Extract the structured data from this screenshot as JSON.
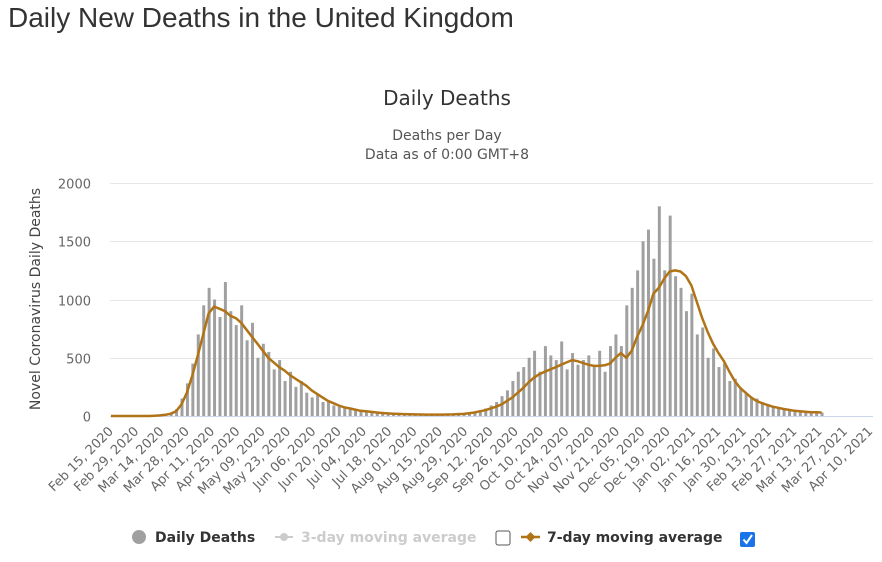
{
  "page": {
    "title": "Daily New Deaths in the United Kingdom"
  },
  "chart_data": {
    "type": "bar",
    "title": "Daily Deaths",
    "subtitle": [
      "Deaths per Day",
      "Data as of 0:00 GMT+8"
    ],
    "xlabel": "",
    "ylabel": "Novel Coronavirus Daily Deaths",
    "ylim": [
      0,
      2000
    ],
    "yticks": [
      0,
      500,
      1000,
      1500,
      2000
    ],
    "grid": true,
    "x_start": "Feb 15, 2020",
    "x_step_days": 3,
    "xtick_labels": [
      "Feb 15, 2020",
      "Feb 29, 2020",
      "Mar 14, 2020",
      "Mar 28, 2020",
      "Apr 11, 2020",
      "Apr 25, 2020",
      "May 09, 2020",
      "May 23, 2020",
      "Jun 06, 2020",
      "Jun 20, 2020",
      "Jul 04, 2020",
      "Jul 18, 2020",
      "Aug 01, 2020",
      "Aug 15, 2020",
      "Aug 29, 2020",
      "Sep 12, 2020",
      "Sep 26, 2020",
      "Oct 10, 2020",
      "Oct 24, 2020",
      "Nov 07, 2020",
      "Nov 21, 2020",
      "Dec 05, 2020",
      "Dec 19, 2020",
      "Jan 02, 2021",
      "Jan 16, 2021",
      "Jan 30, 2021",
      "Feb 13, 2021",
      "Feb 27, 2021",
      "Mar 13, 2021",
      "Mar 27, 2021",
      "Apr 10, 2021"
    ],
    "series": [
      {
        "name": "Daily Deaths",
        "type": "bar",
        "color": "#a0a0a0",
        "values": [
          0,
          0,
          0,
          0,
          0,
          0,
          0,
          0,
          2,
          5,
          10,
          25,
          60,
          150,
          280,
          450,
          700,
          950,
          1100,
          1000,
          850,
          1150,
          900,
          780,
          950,
          650,
          800,
          500,
          620,
          550,
          400,
          480,
          300,
          380,
          250,
          300,
          200,
          160,
          180,
          120,
          130,
          90,
          80,
          70,
          60,
          50,
          40,
          35,
          30,
          25,
          20,
          18,
          15,
          14,
          12,
          12,
          10,
          10,
          9,
          10,
          9,
          10,
          11,
          12,
          14,
          18,
          25,
          35,
          50,
          65,
          90,
          120,
          170,
          220,
          300,
          380,
          420,
          500,
          560,
          380,
          600,
          520,
          480,
          640,
          400,
          540,
          440,
          480,
          520,
          420,
          560,
          380,
          600,
          700,
          600,
          950,
          1100,
          1250,
          1500,
          1600,
          1350,
          1800,
          1250,
          1720,
          1200,
          1100,
          900,
          1050,
          700,
          760,
          500,
          580,
          420,
          450,
          300,
          320,
          230,
          200,
          160,
          150,
          120,
          100,
          80,
          70,
          55,
          45,
          40,
          35,
          30,
          28,
          26,
          30
        ],
        "visible": true
      },
      {
        "name": "3-day moving average",
        "type": "line",
        "color": "#cccccc",
        "visible": false,
        "values": []
      },
      {
        "name": "7-day moving average",
        "type": "line",
        "color": "#b07417",
        "visible": true,
        "values": [
          0,
          0,
          0,
          0,
          0,
          0,
          0,
          0,
          2,
          5,
          10,
          20,
          40,
          100,
          200,
          350,
          520,
          700,
          880,
          940,
          920,
          900,
          860,
          840,
          800,
          740,
          680,
          620,
          560,
          500,
          460,
          420,
          390,
          350,
          320,
          290,
          260,
          220,
          190,
          160,
          130,
          110,
          90,
          75,
          65,
          55,
          45,
          40,
          35,
          30,
          26,
          22,
          20,
          18,
          16,
          15,
          14,
          13,
          12,
          12,
          12,
          12,
          13,
          14,
          16,
          18,
          24,
          30,
          40,
          50,
          65,
          80,
          100,
          130,
          160,
          200,
          240,
          290,
          330,
          360,
          380,
          400,
          420,
          440,
          460,
          480,
          470,
          455,
          440,
          430,
          430,
          435,
          450,
          500,
          540,
          500,
          560,
          680,
          780,
          900,
          1050,
          1100,
          1180,
          1240,
          1250,
          1240,
          1200,
          1120,
          980,
          840,
          720,
          620,
          540,
          470,
          380,
          300,
          240,
          200,
          160,
          130,
          110,
          95,
          80,
          70,
          60,
          52,
          45,
          40,
          36,
          33,
          32,
          30
        ]
      }
    ],
    "legend": {
      "placement": "bottom",
      "items": [
        {
          "label": "Daily Deaths",
          "marker": "circle",
          "color": "#a0a0a0",
          "active": true
        },
        {
          "label": "3-day moving average",
          "marker": "line-dot",
          "color": "#cccccc",
          "active": false,
          "checkbox_checked": false
        },
        {
          "label": "7-day moving average",
          "marker": "line-diamond",
          "color": "#b07417",
          "active": true,
          "checkbox_checked": true
        }
      ]
    }
  }
}
